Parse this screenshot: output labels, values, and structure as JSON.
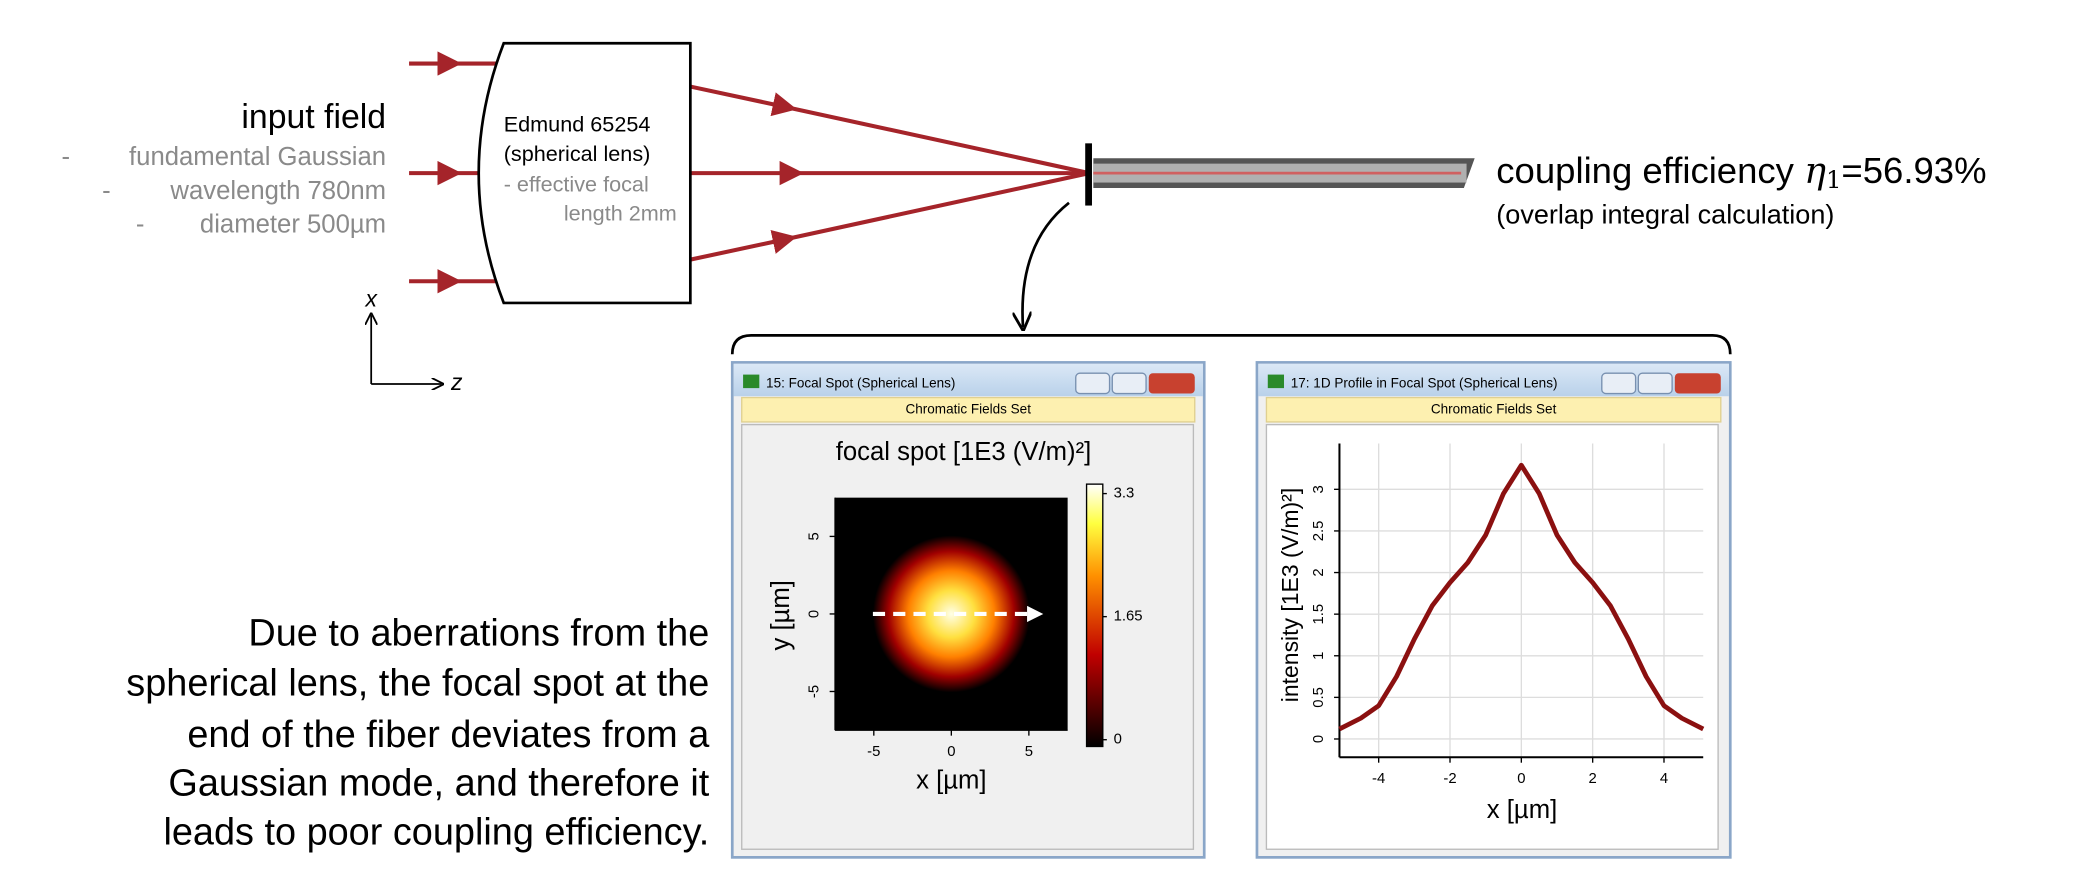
{
  "input": {
    "title": "input field",
    "items": [
      {
        "dash": "-",
        "text": "fundamental Gaussian"
      },
      {
        "dash": "-",
        "text": "wavelength 780nm"
      },
      {
        "dash": "-",
        "text": "diameter 500µm"
      }
    ]
  },
  "lens": {
    "name": "Edmund 65254",
    "kind": "(spherical lens)",
    "focal_1": "- effective focal",
    "focal_2": "length 2mm"
  },
  "axes_icon": {
    "x": "x",
    "z": "z"
  },
  "coupling": {
    "label": "coupling efficiency",
    "symbol": "η",
    "subscript": "1",
    "value": "=56.93%",
    "note": "(overlap integral calculation)"
  },
  "description": [
    "Due to aberrations from the",
    "spherical lens, the focal spot at the",
    "end of the fiber deviates from a",
    "Gaussian mode, and therefore it",
    "leads to poor coupling efficiency."
  ],
  "windows": [
    {
      "title": "15: Focal Spot (Spherical Lens)",
      "bar": "Chromatic Fields Set"
    },
    {
      "title": "17: 1D Profile in Focal Spot (Spherical Lens)",
      "bar": "Chromatic Fields Set"
    }
  ],
  "chart_data": [
    {
      "type": "image",
      "title": "focal spot [1E3 (V/m)²]",
      "x_label": "x [µm]",
      "y_label": "y [µm]",
      "xlim": [
        -7.5,
        7.5
      ],
      "ylim": [
        -7.5,
        7.5
      ],
      "xticks": [
        -5,
        0,
        5
      ],
      "yticks": [
        -5,
        0,
        5
      ],
      "colorbar": {
        "lim": [
          0,
          3.3
        ],
        "ticks": [
          0,
          1.65,
          3.3
        ]
      }
    },
    {
      "type": "line",
      "x_label": "x [µm]",
      "y_label": "intensity [1E3 (V/m)²]",
      "color": "#8b1010",
      "grid": true,
      "x": [
        -5.1,
        -4.5,
        -4,
        -3.5,
        -3,
        -2.5,
        -2,
        -1.5,
        -1,
        -0.5,
        0,
        0.5,
        1,
        1.5,
        2,
        2.5,
        3,
        3.5,
        4,
        4.5,
        5.1
      ],
      "values": [
        0.12,
        0.25,
        0.4,
        0.75,
        1.2,
        1.6,
        1.88,
        2.12,
        2.45,
        2.95,
        3.29,
        2.95,
        2.45,
        2.12,
        1.88,
        1.6,
        1.2,
        0.75,
        0.4,
        0.25,
        0.12
      ],
      "xlim": [
        -5.1,
        5.1
      ],
      "ylim": [
        -0.22,
        3.55
      ],
      "xticks": [
        -4,
        -2,
        0,
        2,
        4
      ],
      "yticks": [
        0,
        0.5,
        1,
        1.5,
        2,
        2.5,
        3
      ]
    }
  ]
}
